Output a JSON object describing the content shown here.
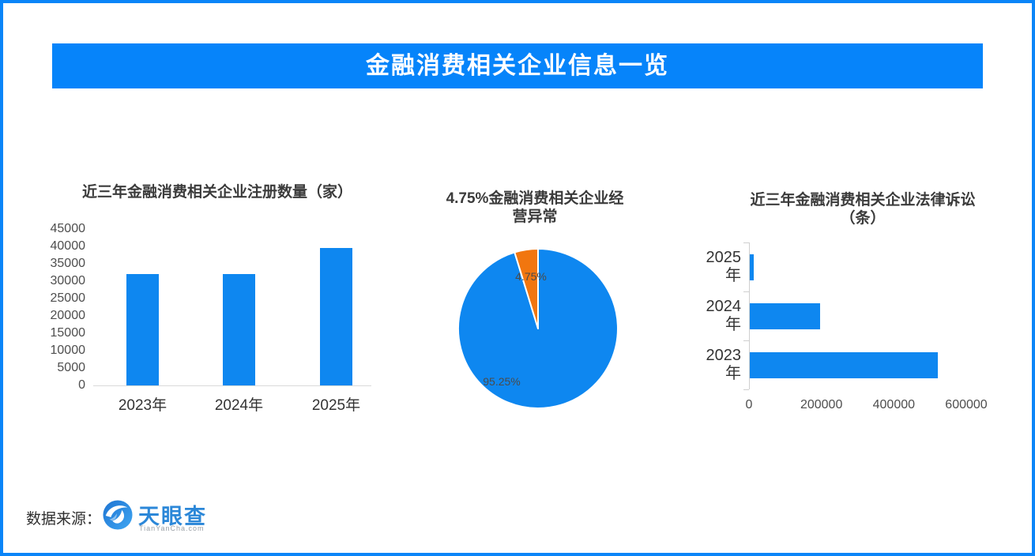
{
  "header": {
    "title": "金融消费相关企业信息一览",
    "bg_color": "#0684fa",
    "text_color": "#ffffff"
  },
  "colors": {
    "page_border": "#0a85f8",
    "bar_blue": "#0e87f0",
    "pie_blue": "#0e87f0",
    "pie_orange": "#f1760f",
    "title_text": "#3b3b3b",
    "axis_text": "#4e4e4e"
  },
  "chart_data": [
    {
      "type": "bar",
      "title": "近三年金融消费相关企业注册数量（家）",
      "categories": [
        "2023年",
        "2024年",
        "2025年"
      ],
      "values": [
        32000,
        32000,
        39500
      ],
      "ylim": [
        0,
        45000
      ],
      "yticks": [
        0,
        5000,
        10000,
        15000,
        20000,
        25000,
        30000,
        35000,
        40000,
        45000
      ],
      "bar_color": "#0e87f0",
      "grid": false,
      "legend": "none"
    },
    {
      "type": "pie",
      "title": "4.75%金融消费相关企业经营异常",
      "title_lines": [
        "4.75%金融消费相关企业经",
        "营异常"
      ],
      "slices": [
        {
          "label": "95.25%",
          "value": 95.25,
          "color": "#0e87f0"
        },
        {
          "label": "4.75%",
          "value": 4.75,
          "color": "#f1760f"
        }
      ],
      "start_angle": "12-oclock",
      "small_slice_sweep": "counterclockwise-from-top",
      "separator_color": "#ffffff"
    },
    {
      "type": "bar",
      "orientation": "horizontal",
      "title": "近三年金融消费相关企业法律诉讼（条）",
      "title_lines": [
        "近三年金融消费相关企业法律诉讼",
        "（条）"
      ],
      "categories": [
        "2025年",
        "2024年",
        "2023年"
      ],
      "values": [
        10000,
        195000,
        520000
      ],
      "xlim": [
        0,
        600000
      ],
      "xticks": [
        0,
        200000,
        400000,
        600000
      ],
      "bar_color": "#0e87f0",
      "grid": false,
      "legend": "none"
    }
  ],
  "footer": {
    "source_label": "数据来源：",
    "logo": {
      "icon": "tianyancha-eye-icon",
      "name": "天眼查",
      "domain": "TianYanCha.com",
      "brand_color": "#2b87d8"
    }
  }
}
